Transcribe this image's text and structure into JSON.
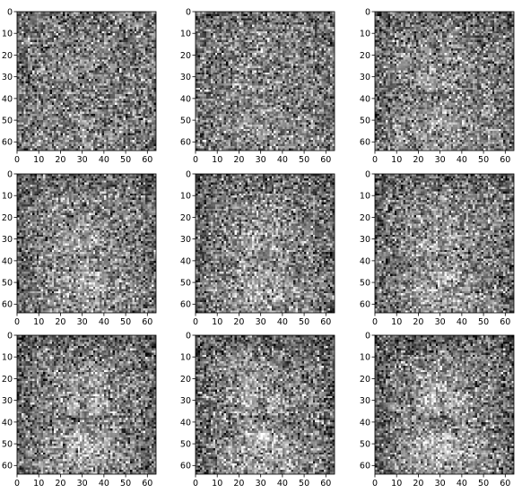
{
  "chart_data": [
    {
      "type": "heatmap",
      "colormap": "gray",
      "image_size": [
        64,
        64
      ],
      "content": "noisy grayscale image, faint face-like blob",
      "xlim": [
        0,
        64
      ],
      "ylim": [
        64,
        0
      ],
      "xticks": [
        0,
        10,
        20,
        30,
        40,
        50,
        60
      ],
      "yticks": [
        0,
        10,
        20,
        30,
        40,
        50,
        60
      ],
      "blob_strength": 0.12,
      "feature_strength": 0.1
    },
    {
      "type": "heatmap",
      "colormap": "gray",
      "image_size": [
        64,
        64
      ],
      "content": "noisy grayscale image, faint face-like blob",
      "xlim": [
        0,
        64
      ],
      "ylim": [
        64,
        0
      ],
      "xticks": [
        0,
        10,
        20,
        30,
        40,
        50,
        60
      ],
      "yticks": [
        0,
        10,
        20,
        30,
        40,
        50,
        60
      ],
      "blob_strength": 0.2,
      "feature_strength": 0.22
    },
    {
      "type": "heatmap",
      "colormap": "gray",
      "image_size": [
        64,
        64
      ],
      "content": "noisy grayscale image, faint face-like blob",
      "xlim": [
        0,
        64
      ],
      "ylim": [
        64,
        0
      ],
      "xticks": [
        0,
        10,
        20,
        30,
        40,
        50,
        60
      ],
      "yticks": [
        0,
        10,
        20,
        30,
        40,
        50,
        60
      ],
      "blob_strength": 0.28,
      "feature_strength": 0.32
    },
    {
      "type": "heatmap",
      "colormap": "gray",
      "image_size": [
        64,
        64
      ],
      "content": "noisy grayscale image, faint face-like blob",
      "xlim": [
        0,
        64
      ],
      "ylim": [
        64,
        0
      ],
      "xticks": [
        0,
        10,
        20,
        30,
        40,
        50,
        60
      ],
      "yticks": [
        0,
        10,
        20,
        30,
        40,
        50,
        60
      ],
      "blob_strength": 0.34,
      "feature_strength": 0.3
    },
    {
      "type": "heatmap",
      "colormap": "gray",
      "image_size": [
        64,
        64
      ],
      "content": "noisy grayscale image, faint face-like blob",
      "xlim": [
        0,
        64
      ],
      "ylim": [
        64,
        0
      ],
      "xticks": [
        0,
        10,
        20,
        30,
        40,
        50,
        60
      ],
      "yticks": [
        0,
        10,
        20,
        30,
        40,
        50,
        60
      ],
      "blob_strength": 0.36,
      "feature_strength": 0.34
    },
    {
      "type": "heatmap",
      "colormap": "gray",
      "image_size": [
        64,
        64
      ],
      "content": "noisy grayscale image, faint face-like blob",
      "xlim": [
        0,
        64
      ],
      "ylim": [
        64,
        0
      ],
      "xticks": [
        0,
        10,
        20,
        30,
        40,
        50,
        60
      ],
      "yticks": [
        0,
        10,
        20,
        30,
        40,
        50,
        60
      ],
      "blob_strength": 0.38,
      "feature_strength": 0.4
    },
    {
      "type": "heatmap",
      "colormap": "gray",
      "image_size": [
        64,
        64
      ],
      "content": "noisy grayscale image, faint face-like blob",
      "xlim": [
        0,
        64
      ],
      "ylim": [
        64,
        0
      ],
      "xticks": [
        0,
        10,
        20,
        30,
        40,
        50,
        60
      ],
      "yticks": [
        0,
        10,
        20,
        30,
        40,
        50,
        60
      ],
      "blob_strength": 0.42,
      "feature_strength": 0.46
    },
    {
      "type": "heatmap",
      "colormap": "gray",
      "image_size": [
        64,
        64
      ],
      "content": "noisy grayscale image, faint face-like blob",
      "xlim": [
        0,
        64
      ],
      "ylim": [
        64,
        0
      ],
      "xticks": [
        0,
        10,
        20,
        30,
        40,
        50,
        60
      ],
      "yticks": [
        0,
        10,
        20,
        30,
        40,
        50,
        60
      ],
      "blob_strength": 0.46,
      "feature_strength": 0.5
    },
    {
      "type": "heatmap",
      "colormap": "gray",
      "image_size": [
        64,
        64
      ],
      "content": "noisy grayscale image, faint face-like blob",
      "xlim": [
        0,
        64
      ],
      "ylim": [
        64,
        0
      ],
      "xticks": [
        0,
        10,
        20,
        30,
        40,
        50,
        60
      ],
      "yticks": [
        0,
        10,
        20,
        30,
        40,
        50,
        60
      ],
      "blob_strength": 0.5,
      "feature_strength": 0.5
    }
  ]
}
